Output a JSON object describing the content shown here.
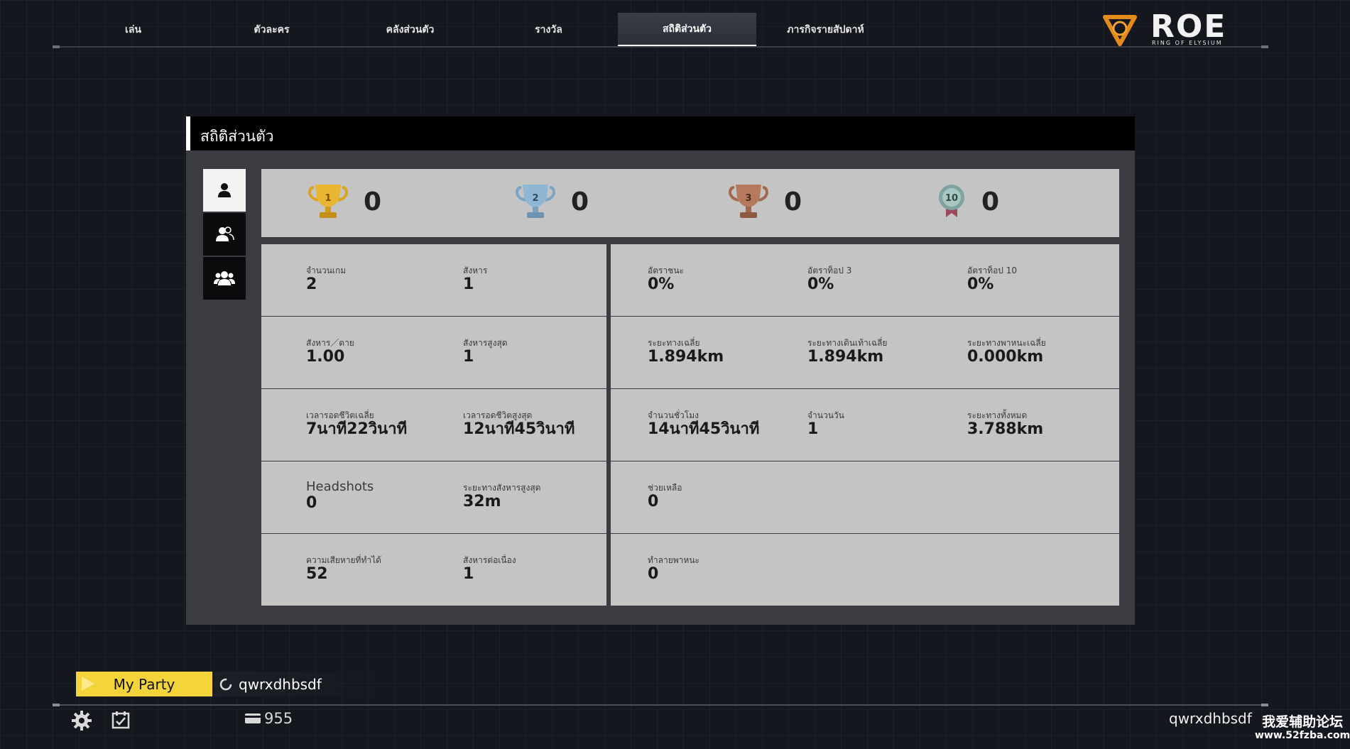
{
  "nav": {
    "tabs": [
      {
        "label": "เล่น"
      },
      {
        "label": "ตัวละคร"
      },
      {
        "label": "คลังส่วนตัว"
      },
      {
        "label": "รางวัล"
      },
      {
        "label": "สถิติส่วนตัว",
        "active": true
      },
      {
        "label": "ภารกิจรายสัปดาห์"
      }
    ]
  },
  "logo": {
    "text": "ROE",
    "subtitle": "RING OF ELYSIUM"
  },
  "panel": {
    "title": "สถิติส่วนตัว",
    "side_tabs": [
      {
        "icon": "solo-person-icon",
        "active": true
      },
      {
        "icon": "duo-people-icon"
      },
      {
        "icon": "squad-people-icon"
      }
    ],
    "trophies": [
      {
        "icon": "gold-trophy-icon",
        "rank": "1",
        "count": "0"
      },
      {
        "icon": "silver-trophy-icon",
        "rank": "2",
        "count": "0"
      },
      {
        "icon": "bronze-trophy-icon",
        "rank": "3",
        "count": "0"
      },
      {
        "icon": "top10-medal-icon",
        "rank": "10",
        "count": "0"
      }
    ],
    "left_rows": [
      [
        {
          "label": "จำนวนเกม",
          "value": "2"
        },
        {
          "label": "สังหาร",
          "value": "1"
        }
      ],
      [
        {
          "label": "สังหาร／ตาย",
          "value": "1.00"
        },
        {
          "label": "สังหารสูงสุด",
          "value": "1"
        }
      ],
      [
        {
          "label": "เวลารอดชีวิตเฉลี่ย",
          "value": "7นาที22วินาที"
        },
        {
          "label": "เวลารอดชีวิตสูงสุด",
          "value": "12นาที45วินาที"
        }
      ],
      [
        {
          "label": "Headshots",
          "value": "0"
        },
        {
          "label": "ระยะทางสังหารสูงสุด",
          "value": "32m"
        }
      ],
      [
        {
          "label": "ความเสียหายที่ทำได้",
          "value": "52"
        },
        {
          "label": "สังหารต่อเนื่อง",
          "value": "1"
        }
      ]
    ],
    "right_rows": [
      [
        {
          "label": "อัตราชนะ",
          "value": "0%"
        },
        {
          "label": "อัตราท็อป 3",
          "value": "0%"
        },
        {
          "label": "อัตราท็อป 10",
          "value": "0%"
        }
      ],
      [
        {
          "label": "ระยะทางเฉลี่ย",
          "value": "1.894km"
        },
        {
          "label": "ระยะทางเดินเท้าเฉลี่ย",
          "value": "1.894km"
        },
        {
          "label": "ระยะทางพาหนะเฉลี่ย",
          "value": "0.000km"
        }
      ],
      [
        {
          "label": "จำนวนชั่วโมง",
          "value": "14นาที45วินาที"
        },
        {
          "label": "จำนวนวัน",
          "value": "1"
        },
        {
          "label": "ระยะทางทั้งหมด",
          "value": "3.788km"
        }
      ],
      [
        {
          "label": "ช่วยเหลือ",
          "value": "0"
        }
      ],
      [
        {
          "label": "ทำลายพาหนะ",
          "value": "0"
        }
      ]
    ]
  },
  "bottom": {
    "party_label": "My Party",
    "member_name": "qwrxdhbsdf",
    "currency": "955",
    "username": "qwrxdhbsdf",
    "watermark_title": "我爱辅助论坛",
    "watermark_url": "www.52fzba.com"
  },
  "colors": {
    "party_yellow": "#f3d43a",
    "panel_bg": "#3a3c42",
    "cell_bg": "#c4c4c4",
    "gold": "#e0b030",
    "silver": "#8fb7d3",
    "bronze": "#b57a5e"
  }
}
